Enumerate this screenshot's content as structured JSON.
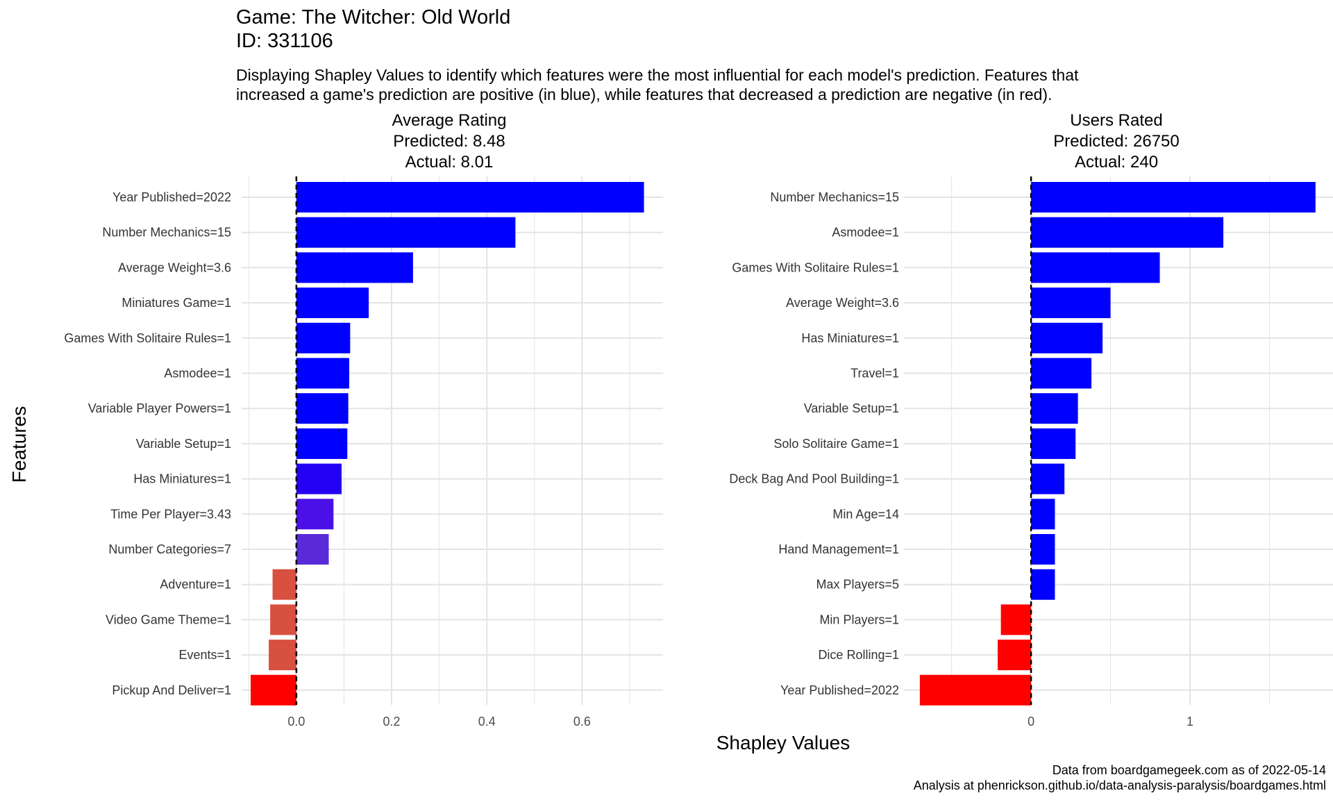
{
  "header": {
    "title_line1": "Game: The Witcher: Old World",
    "title_line2": "ID: 331106",
    "subtitle_line1": "Displaying Shapley Values to identify which features were the most influential for each model's prediction. Features that",
    "subtitle_line2": "increased a game's prediction are positive (in blue), while features that decreased a prediction are negative (in red)."
  },
  "axes": {
    "y_title": "Features",
    "x_title": "Shapley Values"
  },
  "caption": {
    "line1": "Data from boardgamegeek.com as of 2022-05-14",
    "line2": "Analysis at phenrickson.github.io/data-analysis-paralysis/boardgames.html"
  },
  "colors": {
    "positive": "#0000ff",
    "negative": "#ff0000",
    "grid": "#e3e3e3",
    "zero_line": "#000000"
  },
  "chart_data": [
    {
      "type": "bar",
      "orientation": "horizontal",
      "title_lines": [
        "Average Rating",
        "Predicted: 8.48",
        "Actual: 8.01"
      ],
      "categories": [
        "Year Published=2022",
        "Number Mechanics=15",
        "Average Weight=3.6",
        "Miniatures Game=1",
        "Games With Solitaire Rules=1",
        "Asmodee=1",
        "Variable Player Powers=1",
        "Variable Setup=1",
        "Has Miniatures=1",
        "Time Per Player=3.43",
        "Number Categories=7",
        "Adventure=1",
        "Video Game Theme=1",
        "Events=1",
        "Pickup And Deliver=1"
      ],
      "values": [
        0.73,
        0.46,
        0.245,
        0.152,
        0.113,
        0.111,
        0.109,
        0.107,
        0.095,
        0.078,
        0.068,
        -0.05,
        -0.055,
        -0.058,
        -0.096
      ],
      "bar_colors": [
        "#0000ff",
        "#0000ff",
        "#0000ff",
        "#0000ff",
        "#0000ff",
        "#0000ff",
        "#0000ff",
        "#0000ff",
        "#2300f2",
        "#4b10e8",
        "#5a2ad8",
        "#d85040",
        "#d85040",
        "#d85040",
        "#ff0000"
      ],
      "xlim": [
        -0.115,
        0.77
      ],
      "xticks": [
        0.0,
        0.2,
        0.4,
        0.6
      ],
      "xtick_labels": [
        "0.0",
        "0.2",
        "0.4",
        "0.6"
      ],
      "grid": true
    },
    {
      "type": "bar",
      "orientation": "horizontal",
      "title_lines": [
        "Users Rated",
        "Predicted: 26750",
        "Actual: 240"
      ],
      "categories": [
        "Number Mechanics=15",
        "Asmodee=1",
        "Games With Solitaire Rules=1",
        "Average Weight=3.6",
        "Has Miniatures=1",
        "Travel=1",
        "Variable Setup=1",
        "Solo Solitaire Game=1",
        "Deck Bag And Pool Building=1",
        "Min Age=14",
        "Hand Management=1",
        "Max Players=5",
        "Min Players=1",
        "Dice Rolling=1",
        "Year Published=2022"
      ],
      "values": [
        1.79,
        1.21,
        0.81,
        0.5,
        0.45,
        0.38,
        0.295,
        0.28,
        0.21,
        0.15,
        0.15,
        0.15,
        -0.19,
        -0.21,
        -0.7
      ],
      "bar_colors": [
        "#0000ff",
        "#0000ff",
        "#0000ff",
        "#0000ff",
        "#0000ff",
        "#0000ff",
        "#0000ff",
        "#0000ff",
        "#0000ff",
        "#0000ff",
        "#0000ff",
        "#0000ff",
        "#ff0000",
        "#ff0000",
        "#ff0000"
      ],
      "xlim": [
        -0.8,
        1.9
      ],
      "xticks": [
        0,
        1
      ],
      "xtick_labels": [
        "0",
        "1"
      ],
      "grid": true
    }
  ]
}
